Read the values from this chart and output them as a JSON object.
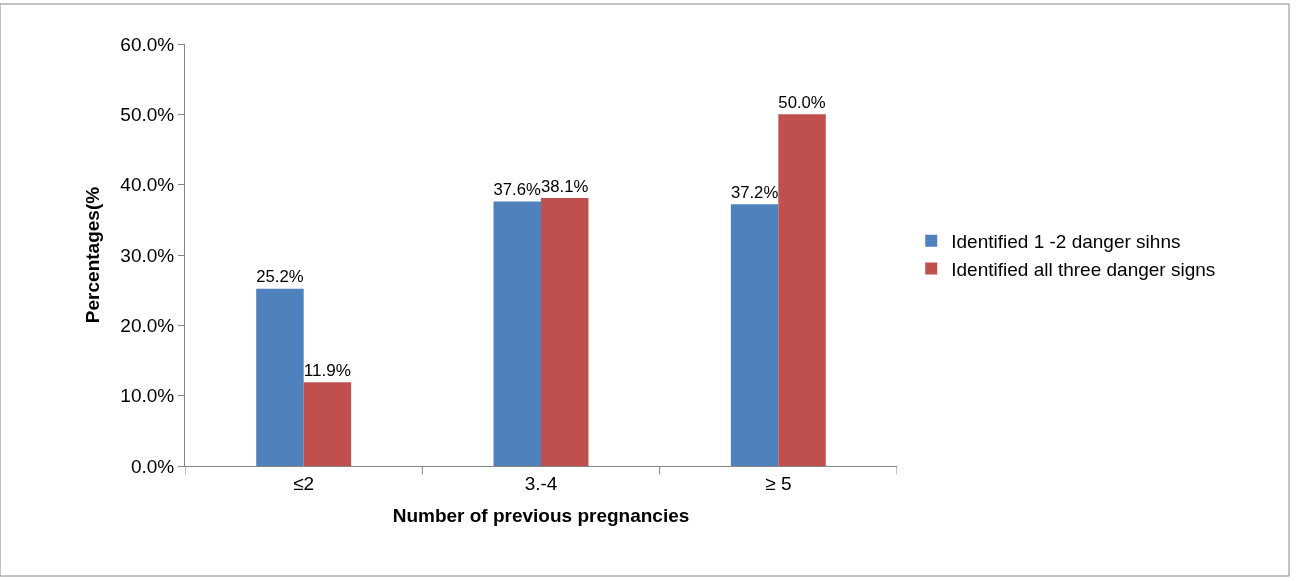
{
  "chart_data": {
    "type": "bar",
    "xlabel": "Number of previous pregnancies",
    "ylabel": "Percentages(%",
    "categories": [
      "≤2",
      "3.-4",
      "≥ 5"
    ],
    "series": [
      {
        "name": "Identified 1 -2 danger sihns",
        "color": "#4f81bd",
        "values": [
          25.2,
          37.6,
          37.2
        ],
        "value_labels": [
          "25.2%",
          "37.6%",
          "37.2%"
        ]
      },
      {
        "name": "Identified all three danger signs",
        "color": "#c0504d",
        "values": [
          11.9,
          38.1,
          50.0
        ],
        "value_labels": [
          "11.9%",
          "38.1%",
          "50.0%"
        ]
      }
    ],
    "ylim": [
      0,
      60
    ],
    "yticks": [
      {
        "value": 0,
        "label": "0.0%"
      },
      {
        "value": 10,
        "label": "10.0%"
      },
      {
        "value": 20,
        "label": "20.0%"
      },
      {
        "value": 30,
        "label": "30.0%"
      },
      {
        "value": 40,
        "label": "40.0%"
      },
      {
        "value": 50,
        "label": "50.0%"
      },
      {
        "value": 60,
        "label": "60.0%"
      }
    ],
    "legend": "right"
  }
}
